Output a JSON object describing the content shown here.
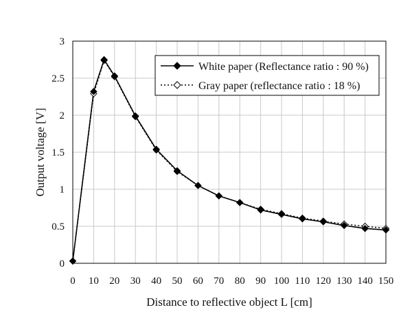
{
  "chart_data": {
    "type": "line",
    "title": "",
    "xlabel": "Distance to reflective object L [cm]",
    "ylabel": "Output voltage [V]",
    "xlim": [
      0,
      150
    ],
    "ylim": [
      0,
      3
    ],
    "x_ticks": [
      0,
      10,
      20,
      30,
      40,
      50,
      60,
      70,
      80,
      90,
      100,
      110,
      120,
      130,
      140,
      150
    ],
    "y_ticks": [
      0,
      0.5,
      1,
      1.5,
      2,
      2.5,
      3
    ],
    "y_tick_labels": [
      "0",
      "0.5",
      "1",
      "1.5",
      "2",
      "2.5",
      "3"
    ],
    "grid": true,
    "legend_position": "top-right",
    "series": [
      {
        "name": "White paper (Reflectance ratio : 90 %)",
        "style": "solid",
        "marker": "filled-diamond",
        "color": "#000000",
        "x": [
          0,
          10,
          15,
          20,
          30,
          40,
          50,
          60,
          70,
          80,
          90,
          100,
          110,
          120,
          130,
          140,
          150
        ],
        "y": [
          0.03,
          2.32,
          2.75,
          2.53,
          1.99,
          1.54,
          1.25,
          1.05,
          0.91,
          0.82,
          0.72,
          0.66,
          0.6,
          0.56,
          0.51,
          0.47,
          0.45
        ]
      },
      {
        "name": "Gray paper (reflectance ratio : 18 %)",
        "style": "dotted",
        "marker": "open-diamond",
        "color": "#000000",
        "x": [
          0,
          10,
          15,
          20,
          30,
          40,
          50,
          60,
          70,
          80,
          90,
          100,
          110,
          120,
          130,
          140,
          150
        ],
        "y": [
          0.03,
          2.29,
          2.74,
          2.52,
          1.98,
          1.53,
          1.24,
          1.05,
          0.91,
          0.82,
          0.73,
          0.67,
          0.61,
          0.57,
          0.53,
          0.5,
          0.47
        ]
      }
    ]
  }
}
